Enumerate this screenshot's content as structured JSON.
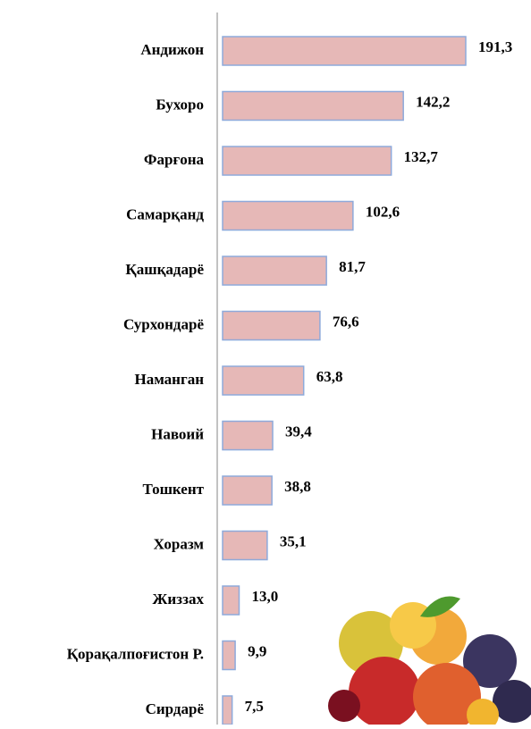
{
  "chart_data": {
    "type": "bar",
    "orientation": "horizontal",
    "categories": [
      "Андижон",
      "Бухоро",
      "Фарғона",
      "Самарқанд",
      "Қашқадарё",
      "Сурхондарё",
      "Наманган",
      "Навоий",
      "Тошкент",
      "Хоразм",
      "Жиззах",
      "Қорақалпоғистон Р.",
      "Сирдарё"
    ],
    "values": [
      191.3,
      142.2,
      132.7,
      102.6,
      81.7,
      76.6,
      63.8,
      39.4,
      38.8,
      35.1,
      13.0,
      9.9,
      7.5
    ],
    "value_labels": [
      "191,3",
      "142,2",
      "132,7",
      "102,6",
      "81,7",
      "76,6",
      "63,8",
      "39,4",
      "38,8",
      "35,1",
      "13,0",
      "9,9",
      "7,5"
    ],
    "color": "#e6b8b7",
    "edge_color": "#8eaadb"
  }
}
